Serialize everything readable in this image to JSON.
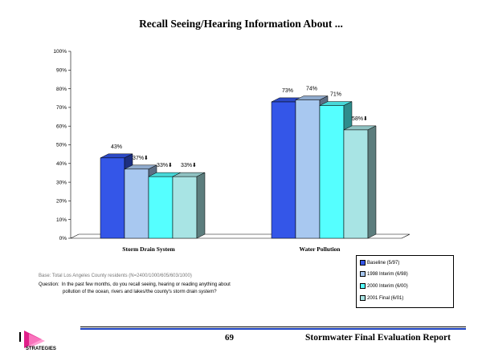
{
  "chart_data": {
    "type": "bar",
    "title": "Recall Seeing/Hearing Information About ...",
    "categories": [
      "Storm Drain System",
      "Water Pollution"
    ],
    "series": [
      {
        "name": "Baseline (5/97)",
        "color": "#3456e8",
        "values": [
          43,
          73
        ]
      },
      {
        "name": "1998 Interim (6/98)",
        "color": "#a8c8f0",
        "values": [
          37,
          74
        ]
      },
      {
        "name": "2000 Interim (6/00)",
        "color": "#55ffff",
        "values": [
          33,
          71
        ]
      },
      {
        "name": "2001 Final (6/01)",
        "color": "#a8e4e4",
        "values": [
          33,
          58
        ]
      }
    ],
    "data_labels": [
      [
        "43%",
        "37%⬇",
        "33%⬇",
        "33%⬇"
      ],
      [
        "73%",
        "74%",
        "71%",
        "58%⬇"
      ]
    ],
    "ylim": [
      0,
      100
    ],
    "yticks": [
      "0%",
      "10%",
      "20%",
      "30%",
      "40%",
      "50%",
      "60%",
      "70%",
      "80%",
      "90%",
      "100%"
    ],
    "xlabel": "",
    "ylabel": "",
    "legend_position": "bottom-right"
  },
  "notes": {
    "base": "Base: Total Los Angeles County residents (N=2400/1000/605/603/1000)",
    "question_label": "Question:",
    "question_line1": "In the past few months, do you recall seeing, hearing or reading anything about",
    "question_line2": "pollution of the ocean, rivers and lakes/the county's storm drain system?"
  },
  "footer": {
    "logo_text": "STRATEGIES",
    "page_number": "69",
    "report_title": "Stormwater Final Evaluation Report"
  }
}
